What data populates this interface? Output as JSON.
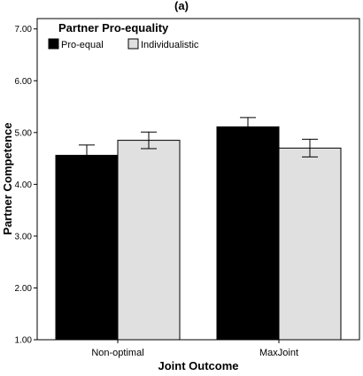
{
  "chart_data": {
    "type": "bar",
    "title": "(a)",
    "xlabel": "Joint Outcome",
    "ylabel": "Partner Competence",
    "categories": [
      "Non-optimal",
      "MaxJoint"
    ],
    "ylim": [
      1.0,
      7.2
    ],
    "yticks": [
      1.0,
      2.0,
      3.0,
      4.0,
      5.0,
      6.0,
      7.0
    ],
    "ytick_labels": [
      "1.00",
      "2.00",
      "3.00",
      "4.00",
      "5.00",
      "6.00",
      "7.00"
    ],
    "legend_title": "Partner Pro-equality",
    "legend_position": "top-left",
    "grid": false,
    "series": [
      {
        "name": "Pro-equal",
        "color": "#000000",
        "values": [
          4.56,
          5.11
        ],
        "error": [
          [
            4.37,
            4.76
          ],
          [
            4.93,
            5.29
          ]
        ]
      },
      {
        "name": "Individualistic",
        "color": "#e0e0e0",
        "values": [
          4.85,
          4.7
        ],
        "error": [
          [
            4.69,
            5.01
          ],
          [
            4.53,
            4.87
          ]
        ]
      }
    ]
  }
}
